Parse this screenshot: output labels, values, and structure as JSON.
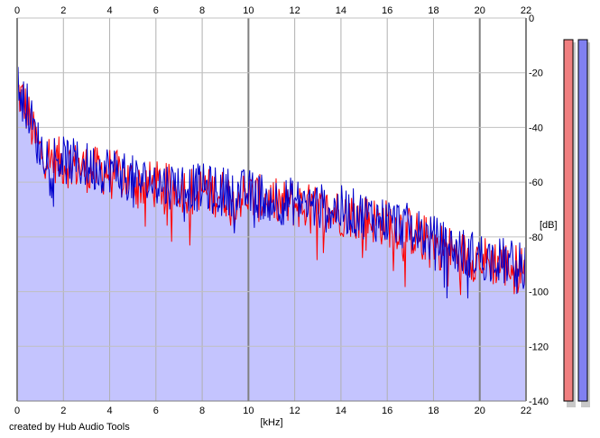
{
  "chart_data": {
    "type": "line",
    "xlabel": "[kHz]",
    "ylabel": "[dB]",
    "xlim": [
      0,
      22
    ],
    "ylim": [
      -140,
      0
    ],
    "x_ticks": [
      "0",
      "2",
      "4",
      "6",
      "8",
      "10",
      "12",
      "14",
      "16",
      "18",
      "20",
      "22"
    ],
    "y_ticks": [
      "0",
      "-20",
      "-40",
      "-60",
      "-80",
      "-100",
      "-120",
      "-140"
    ],
    "grid": true,
    "fill_color": "#c4c4fe",
    "series": [
      {
        "color": "#ff0000",
        "x": [
          0,
          0.25,
          0.5,
          0.75,
          1,
          1.5,
          2,
          2.5,
          3,
          3.5,
          4,
          4.5,
          5,
          5.5,
          6,
          6.5,
          7,
          7.5,
          8,
          8.5,
          9,
          9.5,
          10,
          10.5,
          11,
          11.5,
          12,
          12.5,
          13,
          13.5,
          14,
          14.5,
          15,
          15.5,
          16,
          16.5,
          17,
          17.5,
          18,
          18.5,
          19,
          19.5,
          20,
          20.5,
          21,
          21.5,
          22
        ],
        "values": [
          -27,
          -30,
          -36,
          -44,
          -49,
          -51,
          -53,
          -54,
          -55,
          -56,
          -56,
          -58,
          -60,
          -61,
          -61,
          -62,
          -62,
          -63,
          -63,
          -64,
          -64,
          -65,
          -65,
          -66,
          -67,
          -68,
          -68,
          -69,
          -70,
          -71,
          -71,
          -72,
          -73,
          -74,
          -75,
          -76,
          -78,
          -80,
          -82,
          -84,
          -86,
          -87,
          -88,
          -89,
          -90,
          -91,
          -92
        ]
      },
      {
        "color": "#0000cc",
        "x": [
          0,
          0.25,
          0.5,
          0.75,
          1,
          1.5,
          2,
          2.5,
          3,
          3.5,
          4,
          4.5,
          5,
          5.5,
          6,
          6.5,
          7,
          7.5,
          8,
          8.5,
          9,
          9.5,
          10,
          10.5,
          11,
          11.5,
          12,
          12.5,
          13,
          13.5,
          14,
          14.5,
          15,
          15.5,
          16,
          16.5,
          17,
          17.5,
          18,
          18.5,
          19,
          19.5,
          20,
          20.5,
          21,
          21.5,
          22
        ],
        "values": [
          -25,
          -28,
          -34,
          -42,
          -48,
          -50,
          -52,
          -53,
          -54,
          -55,
          -55,
          -57,
          -59,
          -60,
          -60,
          -61,
          -61,
          -62,
          -62,
          -63,
          -63,
          -64,
          -64,
          -65,
          -66,
          -67,
          -67,
          -68,
          -69,
          -70,
          -70,
          -71,
          -72,
          -73,
          -74,
          -75,
          -77,
          -79,
          -81,
          -83,
          -85,
          -86,
          -87,
          -88,
          -89,
          -90,
          -91
        ]
      }
    ],
    "level_meters": [
      {
        "color": "#f07f80",
        "level": 1.0
      },
      {
        "color": "#8080f0",
        "level": 1.0
      }
    ]
  },
  "footer": {
    "credit": "created by Hub Audio Tools"
  }
}
